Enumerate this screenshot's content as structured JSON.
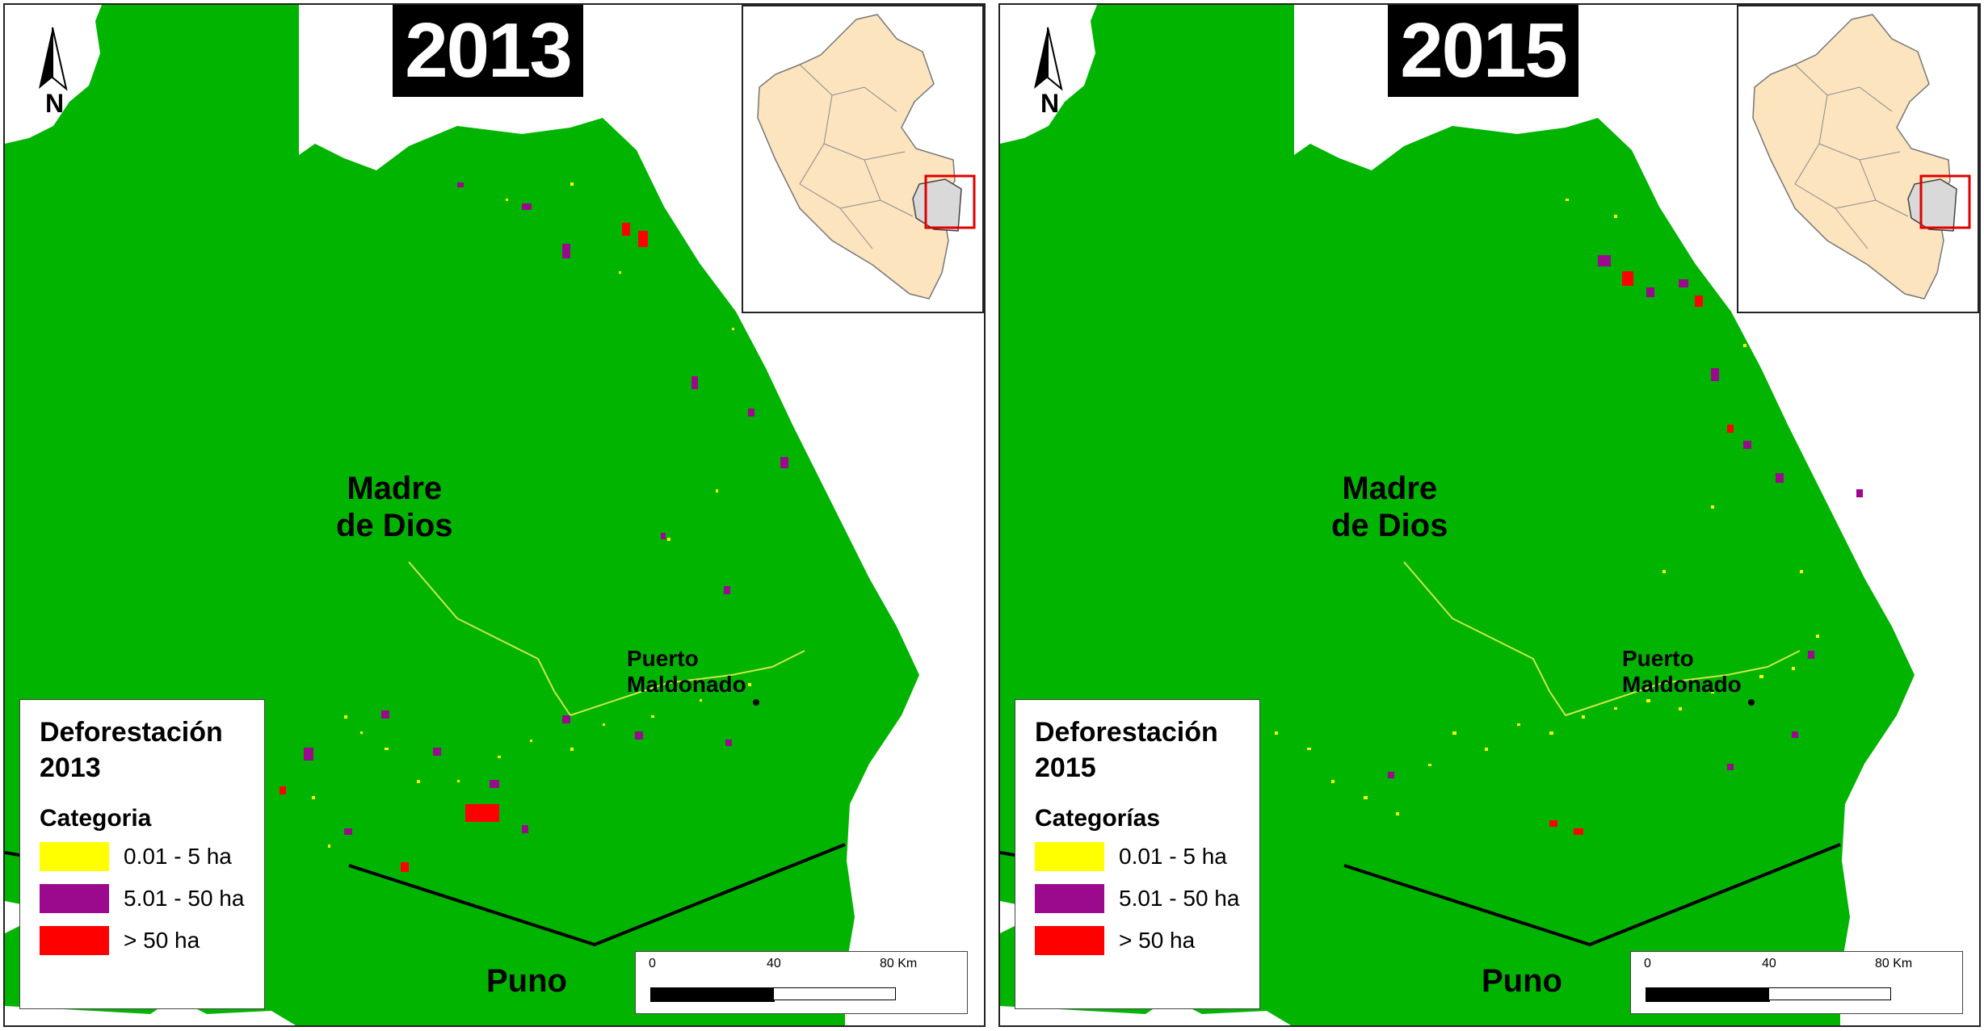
{
  "colors": {
    "forest": "#00b400",
    "outside": "#ffffff",
    "small": "#ffff00",
    "medium": "#9b0a8c",
    "large": "#ff0000",
    "inset_country": "#fbe4be",
    "inset_region": "#d9d9d9",
    "inset_box": "#e00000"
  },
  "panels": [
    {
      "year": "2013",
      "region": "Madre\nde Dios",
      "south_region": "Puno",
      "city": "Puerto\nMaldonado",
      "north_letter": "N",
      "legend": {
        "title": "Deforestación\n2013",
        "subtitle": "Categoria",
        "items": [
          {
            "label": "0.01 - 5 ha",
            "color": "#ffff00"
          },
          {
            "label": "5.01 - 50 ha",
            "color": "#9b0a8c"
          },
          {
            "label": "> 50 ha",
            "color": "#ff0000"
          }
        ]
      },
      "scale": {
        "ticks": [
          "0",
          "40",
          "80 Km"
        ]
      }
    },
    {
      "year": "2015",
      "region": "Madre\nde Dios",
      "south_region": "Puno",
      "city": "Puerto\nMaldonado",
      "north_letter": "N",
      "legend": {
        "title": "Deforestación\n2015",
        "subtitle": "Categorías",
        "items": [
          {
            "label": "0.01 - 5 ha",
            "color": "#ffff00"
          },
          {
            "label": "5.01 - 50 ha",
            "color": "#9b0a8c"
          },
          {
            "label": "> 50 ha",
            "color": "#ff0000"
          }
        ]
      },
      "scale": {
        "ticks": [
          "0",
          "40",
          "80 Km"
        ]
      }
    }
  ]
}
